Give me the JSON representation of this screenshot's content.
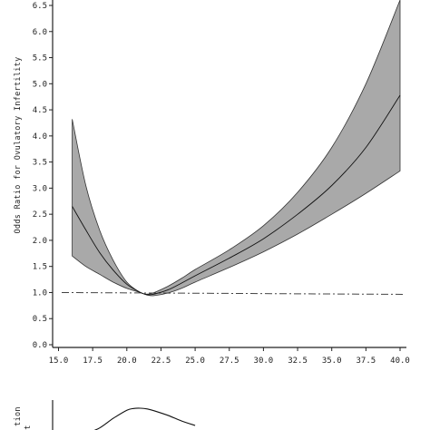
{
  "chart_data": [
    {
      "type": "line",
      "title": "",
      "xlabel": "",
      "ylabel": "Odds Ratio for Ovulatory Infertility",
      "xlim": [
        15.0,
        40.0
      ],
      "ylim": [
        0.0,
        6.5
      ],
      "x_ticks": [
        "15.0",
        "17.5",
        "20.0",
        "22.5",
        "25.0",
        "27.5",
        "30.0",
        "32.5",
        "35.0",
        "37.5",
        "40.0"
      ],
      "y_ticks": [
        "0.0",
        "0.5",
        "1.0",
        "1.5",
        "2.0",
        "2.5",
        "3.0",
        "3.5",
        "4.0",
        "4.5",
        "5.0",
        "5.5",
        "6.0",
        "6.5"
      ],
      "reference_line": {
        "y": 1.0,
        "style": "dash-dot"
      },
      "series": [
        {
          "role": "estimate",
          "x": [
            16.0,
            17.0,
            18.0,
            19.0,
            20.0,
            21.0,
            21.5,
            22.0,
            23.0,
            24.0,
            25.0,
            27.5,
            30.0,
            32.5,
            35.0,
            37.5,
            40.0
          ],
          "y": [
            2.65,
            2.2,
            1.77,
            1.43,
            1.16,
            1.0,
            0.96,
            0.97,
            1.05,
            1.18,
            1.32,
            1.66,
            2.03,
            2.5,
            3.05,
            3.78,
            4.78
          ]
        },
        {
          "role": "upper",
          "x": [
            16.0,
            17.0,
            18.0,
            19.0,
            20.0,
            21.0,
            21.5,
            22.0,
            23.0,
            24.0,
            25.0,
            27.5,
            30.0,
            32.5,
            35.0,
            37.5,
            40.0
          ],
          "y": [
            4.32,
            3.05,
            2.2,
            1.62,
            1.2,
            1.0,
            0.97,
            1.0,
            1.12,
            1.27,
            1.44,
            1.82,
            2.28,
            2.92,
            3.78,
            5.0,
            6.7
          ]
        },
        {
          "role": "lower",
          "x": [
            16.0,
            17.0,
            18.0,
            19.0,
            20.0,
            21.0,
            21.5,
            22.0,
            23.0,
            24.0,
            25.0,
            27.5,
            30.0,
            32.5,
            35.0,
            37.5,
            40.0
          ],
          "y": [
            1.7,
            1.5,
            1.35,
            1.2,
            1.08,
            1.0,
            0.95,
            0.94,
            0.99,
            1.08,
            1.2,
            1.48,
            1.78,
            2.12,
            2.5,
            2.9,
            3.33
          ]
        }
      ]
    },
    {
      "type": "line",
      "title": "",
      "xlabel": "",
      "ylabel": "",
      "ylabel_partial": [
        "tion",
        "t"
      ],
      "series": [
        {
          "role": "distribution",
          "x": [
            17.0,
            18.0,
            19.0,
            20.0,
            20.5,
            21.0,
            21.5,
            22.0,
            23.0,
            24.0,
            25.0
          ],
          "y": [
            0.0,
            0.22,
            0.6,
            0.92,
            0.99,
            1.0,
            0.97,
            0.9,
            0.72,
            0.5,
            0.32
          ]
        }
      ]
    }
  ]
}
